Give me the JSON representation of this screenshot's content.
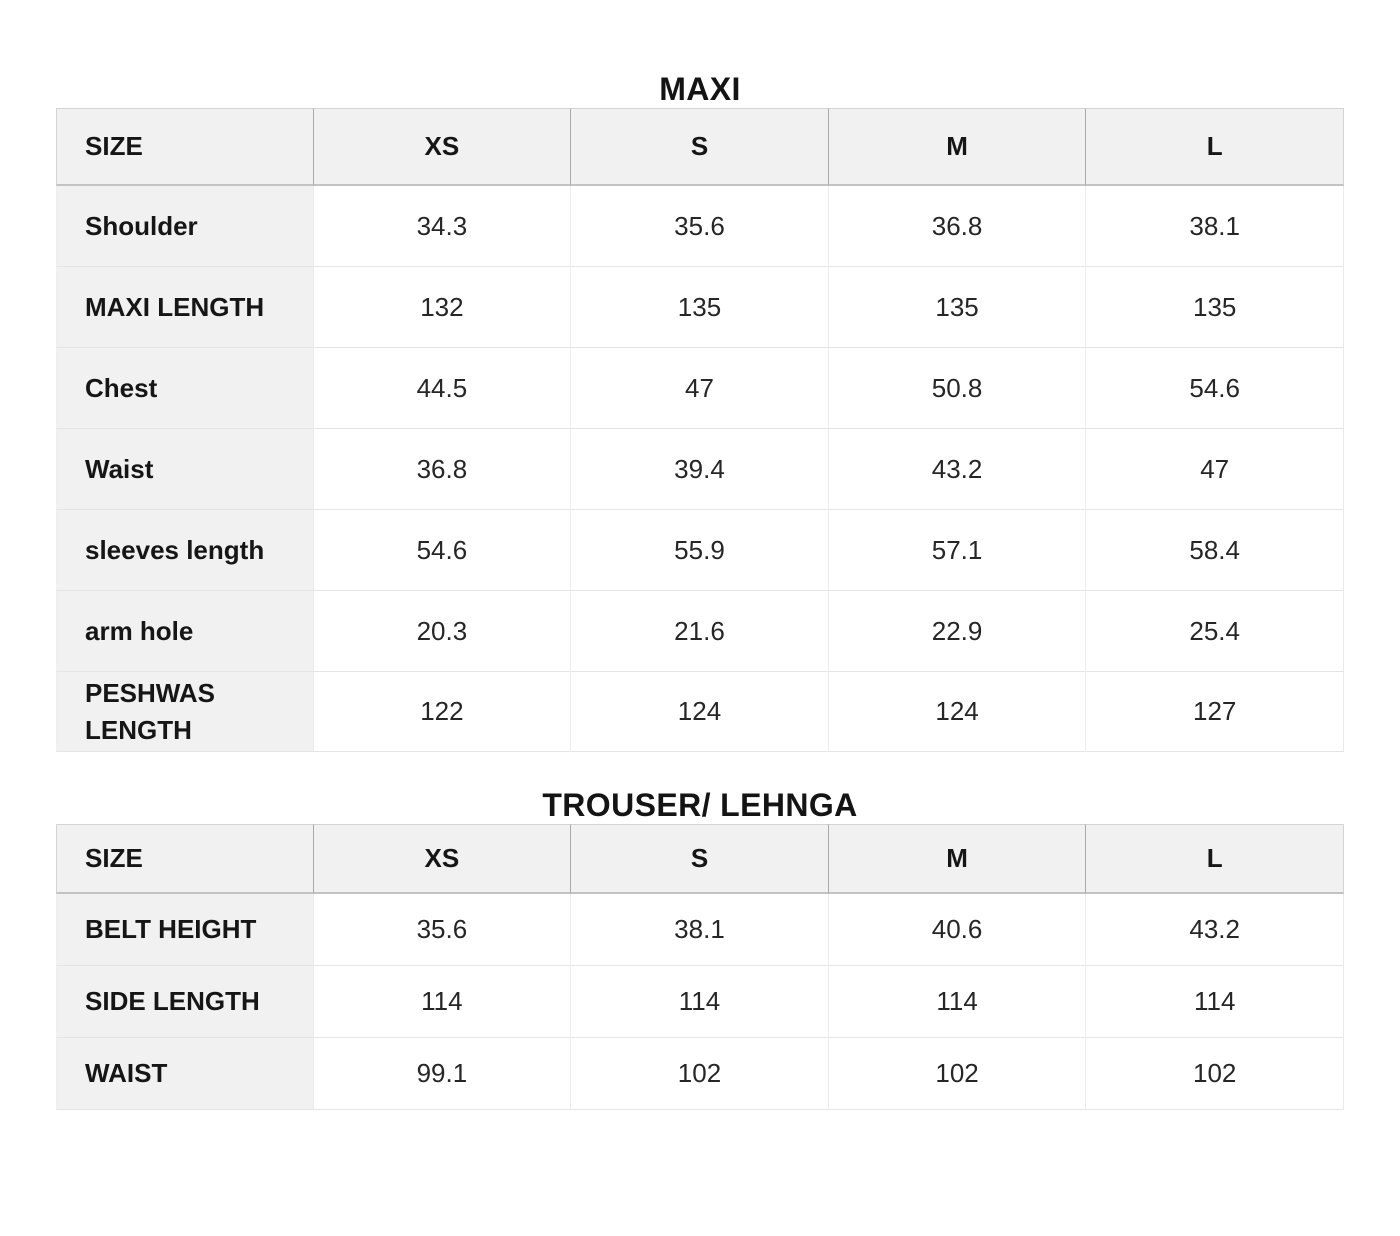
{
  "colors": {
    "page_bg": "#ffffff",
    "header_bg": "#f1f1f1",
    "label_column_bg": "#f1f1f1",
    "data_cell_bg": "#ffffff",
    "header_divider": "#a9a9a9",
    "header_bottom_rule": "#c3c3c3",
    "body_gridline": "#e8e8e8",
    "text": "#161616"
  },
  "tables": [
    {
      "title": "MAXI",
      "columns": [
        "SIZE",
        "XS",
        "S",
        "M",
        "L"
      ],
      "rows": [
        {
          "label": "Shoulder",
          "values": [
            "34.3",
            "35.6",
            "36.8",
            "38.1"
          ]
        },
        {
          "label": "MAXI LENGTH",
          "values": [
            "132",
            "135",
            "135",
            "135"
          ]
        },
        {
          "label": "Chest",
          "values": [
            "44.5",
            "47",
            "50.8",
            "54.6"
          ]
        },
        {
          "label": "Waist",
          "values": [
            "36.8",
            "39.4",
            "43.2",
            "47"
          ]
        },
        {
          "label": "sleeves length",
          "values": [
            "54.6",
            "55.9",
            "57.1",
            "58.4"
          ]
        },
        {
          "label": "arm hole",
          "values": [
            "20.3",
            "21.6",
            "22.9",
            "25.4"
          ]
        },
        {
          "label": "PESHWAS LENGTH",
          "values": [
            "122",
            "124",
            "124",
            "127"
          ]
        }
      ]
    },
    {
      "title": "TROUSER/ LEHNGA",
      "columns": [
        "SIZE",
        "XS",
        "S",
        "M",
        "L"
      ],
      "rows": [
        {
          "label": "BELT HEIGHT",
          "values": [
            "35.6",
            "38.1",
            "40.6",
            "43.2"
          ]
        },
        {
          "label": "SIDE LENGTH",
          "values": [
            "114",
            "114",
            "114",
            "114"
          ]
        },
        {
          "label": "WAIST",
          "values": [
            "99.1",
            "102",
            "102",
            "102"
          ]
        }
      ]
    }
  ]
}
